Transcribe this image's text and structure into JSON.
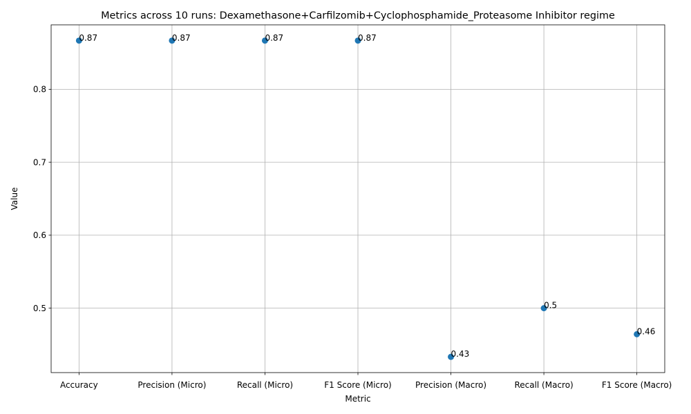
{
  "chart_data": {
    "type": "scatter",
    "title": "Metrics across 10 runs: Dexamethasone+Carfilzomib+Cyclophosphamide_Proteasome Inhibitor regime",
    "xlabel": "Metric",
    "ylabel": "Value",
    "categories": [
      "Accuracy",
      "Precision (Micro)",
      "Recall (Micro)",
      "F1 Score (Micro)",
      "Precision (Macro)",
      "Recall (Macro)",
      "F1 Score (Macro)"
    ],
    "values": [
      0.8667,
      0.8667,
      0.8667,
      0.8667,
      0.4333,
      0.5,
      0.4643
    ],
    "data_labels": [
      "0.87",
      "0.87",
      "0.87",
      "0.87",
      "0.43",
      "0.5",
      "0.46"
    ],
    "ylim": [
      0.4117,
      0.8883
    ],
    "yticks": [
      "0.5",
      "0.6",
      "0.7",
      "0.8"
    ],
    "grid": true,
    "marker_color": "#1f77b4"
  }
}
